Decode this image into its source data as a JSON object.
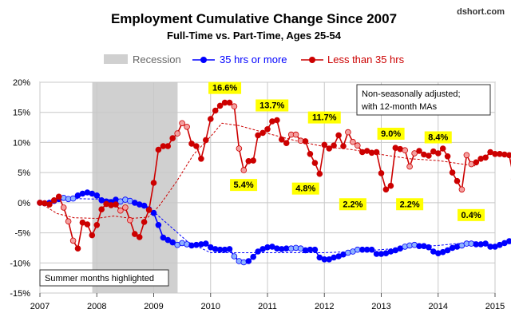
{
  "chart_data": {
    "type": "line",
    "title": "Employment Cumulative Change Since 2007",
    "subtitle": "Full-Time vs. Part-Time, Ages 25-54",
    "source": "dshort.com",
    "note": "Non-seasonally  adjusted;\nwith 12-month MAs",
    "footnote": "Summer months highlighted",
    "xlim": [
      2007,
      2015
    ],
    "ylim": [
      -15,
      20
    ],
    "x_ticks": [
      2007,
      2008,
      2009,
      2010,
      2011,
      2012,
      2013,
      2014,
      2015
    ],
    "y_ticks": [
      -15,
      -10,
      -5,
      0,
      5,
      10,
      15,
      20
    ],
    "y_tick_labels": [
      "-15%",
      "-10%",
      "-5%",
      "0%",
      "5%",
      "10%",
      "15%",
      "20%"
    ],
    "grid": true,
    "legend_placement": "top",
    "recession": {
      "name": "Recession",
      "start": 2007.92,
      "end": 2009.42,
      "color": "#d0d0d0"
    },
    "series": [
      {
        "name": "35 hrs or more",
        "color": "#0000ff",
        "summer_color": "#8fb3ff",
        "start": 2007.0,
        "values": [
          0,
          -0.1,
          0,
          0.3,
          0.6,
          0.8,
          0.6,
          0.7,
          1.2,
          1.5,
          1.7,
          1.5,
          1.2,
          0.4,
          0.2,
          0.1,
          0.5,
          0.2,
          0.5,
          0.3,
          0,
          -0.3,
          -0.5,
          -1.1,
          -1.7,
          -3.7,
          -5.8,
          -6.2,
          -6.6,
          -7.0,
          -6.7,
          -6.9,
          -7.1,
          -7.0,
          -6.9,
          -6.8,
          -7.4,
          -7.7,
          -7.8,
          -7.8,
          -7.7,
          -8.9,
          -9.7,
          -9.9,
          -9.7,
          -9.0,
          -8.1,
          -7.7,
          -7.4,
          -7.3,
          -7.6,
          -7.7,
          -7.6,
          -7.6,
          -7.5,
          -7.6,
          -7.9,
          -7.8,
          -7.8,
          -9.1,
          -9.4,
          -9.4,
          -9.1,
          -8.9,
          -8.6,
          -8.3,
          -8.1,
          -7.8,
          -7.8,
          -7.8,
          -7.8,
          -8.5,
          -8.5,
          -8.4,
          -8.1,
          -7.9,
          -7.6,
          -7.3,
          -7.1,
          -7.0,
          -7.2,
          -7.2,
          -7.4,
          -8.1,
          -8.4,
          -8.2,
          -7.9,
          -7.5,
          -7.3,
          -7.1,
          -6.8,
          -6.8,
          -6.9,
          -6.9,
          -6.8,
          -7.3,
          -7.3,
          -7.0,
          -6.7,
          -6.4,
          -6.0,
          -5.8,
          -5.6,
          -5.7,
          -5.5,
          -5.1
        ]
      },
      {
        "name": "Less than 35 hrs",
        "color": "#cc0000",
        "summer_color": "#f4a0a0",
        "start": 2007.0,
        "values": [
          0,
          -0.1,
          -0.3,
          0.4,
          1,
          -0.8,
          -3.1,
          -6.3,
          -7.6,
          -3.3,
          -3.6,
          -5.4,
          -3.7,
          -1.1,
          -0.2,
          -0.4,
          -0.3,
          -1.3,
          -0.8,
          -2.9,
          -5.2,
          -5.7,
          -3.2,
          -1.2,
          3.3,
          8.8,
          9.4,
          9.4,
          10.7,
          11.5,
          13.2,
          12.6,
          9.8,
          9.4,
          7.3,
          10.4,
          13.9,
          15.3,
          16.1,
          16.6,
          16.6,
          16.0,
          9.0,
          5.4,
          6.9,
          7.0,
          11.2,
          11.6,
          12.2,
          13.5,
          13.7,
          10.5,
          9.9,
          11.3,
          11.3,
          10.3,
          10.2,
          8.1,
          6.6,
          4.8,
          9.6,
          9.0,
          9.5,
          11.2,
          9.4,
          11.7,
          10.1,
          9.5,
          8.4,
          8.6,
          8.3,
          8.4,
          4.9,
          2.2,
          2.8,
          9.1,
          8.9,
          8.7,
          6.0,
          8.2,
          8.6,
          8.0,
          7.8,
          8.5,
          8.2,
          9.0,
          7.7,
          5.0,
          3.6,
          2.2,
          7.9,
          6.4,
          6.7,
          7.3,
          7.5,
          8.4,
          8.1,
          8.1,
          8.0,
          7.9,
          3.9,
          4.9,
          1.7,
          0.4
        ]
      },
      {
        "name": "12-month MA (35 hrs or more)",
        "color": "#0000ff",
        "values_x": [
          2007.0,
          2007.5,
          2008.0,
          2008.4,
          2008.8,
          2009.0,
          2009.3,
          2009.6,
          2010.0,
          2010.5,
          2011.0,
          2011.5,
          2012.0,
          2012.5,
          2013.0,
          2013.5,
          2014.0,
          2014.65
        ],
        "values": [
          0,
          0.7,
          0.6,
          0.4,
          0,
          -1.5,
          -4,
          -6.5,
          -8.3,
          -8.3,
          -8.3,
          -8.3,
          -8.3,
          -8.1,
          -7.8,
          -7.4,
          -7.1,
          -6.5
        ]
      },
      {
        "name": "12-month MA (Less than 35 hrs)",
        "color": "#cc0000",
        "values_x": [
          2007.0,
          2007.3,
          2007.6,
          2008.0,
          2008.3,
          2008.6,
          2008.9,
          2009.1,
          2009.4,
          2009.7,
          2010.0,
          2010.2,
          2010.5,
          2011.0,
          2011.5,
          2012.0,
          2012.5,
          2013.0,
          2013.5,
          2014.0,
          2014.65
        ],
        "values": [
          0,
          -1.8,
          -2.5,
          -2.6,
          -2.2,
          -2.6,
          -2.4,
          -0.5,
          3.5,
          8.0,
          11.0,
          13.2,
          12.8,
          11.5,
          10.3,
          9.3,
          8.8,
          8.0,
          7.3,
          7.0,
          6.1
        ]
      }
    ],
    "annotations": [
      {
        "text": "16.6%",
        "x": 2010.25,
        "y": 16.6,
        "position": "above"
      },
      {
        "text": "13.7%",
        "x": 2011.08,
        "y": 13.7,
        "position": "above"
      },
      {
        "text": "11.7%",
        "x": 2012.0,
        "y": 11.7,
        "position": "above"
      },
      {
        "text": "9.0%",
        "x": 2013.17,
        "y": 9.0,
        "position": "above"
      },
      {
        "text": "8.4%",
        "x": 2014.0,
        "y": 8.4,
        "position": "above"
      },
      {
        "text": "5.4%",
        "x": 2010.58,
        "y": 5.4,
        "position": "below"
      },
      {
        "text": "4.8%",
        "x": 2011.67,
        "y": 4.8,
        "position": "below"
      },
      {
        "text": "2.2%",
        "x": 2012.5,
        "y": 2.2,
        "position": "below"
      },
      {
        "text": "2.2%",
        "x": 2013.5,
        "y": 2.2,
        "position": "below"
      },
      {
        "text": "0.4%",
        "x": 2014.58,
        "y": 0.4,
        "position": "below"
      }
    ]
  }
}
